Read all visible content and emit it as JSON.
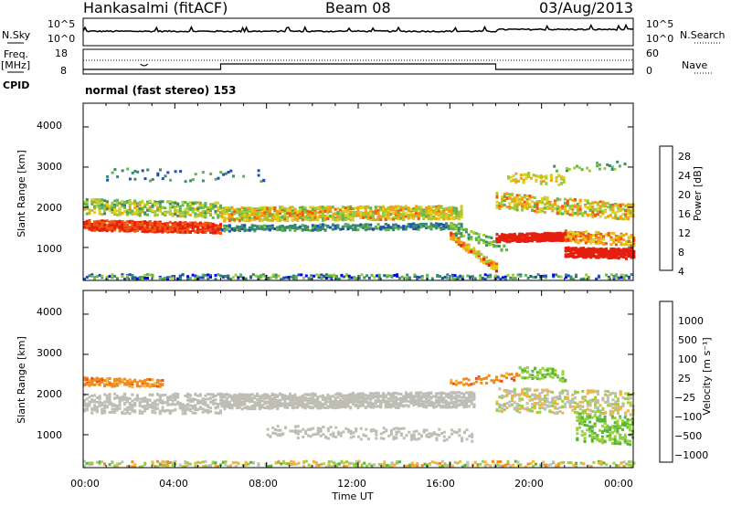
{
  "header": {
    "station": "Hankasalmi (fitACF)",
    "beam": "Beam 08",
    "date": "03/Aug/2013"
  },
  "noise_panel": {
    "left_label": "N.Sky",
    "right_label": "N.Search",
    "left_ticks": [
      "10^5",
      "10^0"
    ],
    "right_ticks": [
      "10^5",
      "10^0"
    ]
  },
  "freq_panel": {
    "left_label": "Freq.",
    "left_unit": "[MHz]",
    "right_label": "Nave",
    "left_ticks": [
      "18",
      "8"
    ],
    "right_ticks": [
      "60",
      "0"
    ]
  },
  "cpid": {
    "label": "CPID",
    "mode_text": "normal (fast stereo) 153"
  },
  "chart_data": [
    {
      "type": "heatmap",
      "title": "",
      "ylabel": "Slant Range [km]",
      "xlabel": "",
      "yticks": [
        "4000",
        "3000",
        "2000",
        "1000"
      ],
      "ylim": [
        180,
        4590
      ],
      "xlim_hours": [
        0,
        24
      ],
      "colorbar": {
        "label": "Power [dB]",
        "ticks": [
          "28",
          "24",
          "20",
          "16",
          "12",
          "8",
          "4"
        ],
        "range": [
          0,
          32
        ],
        "colors": [
          "#0000ff",
          "#1f50b4",
          "#3c8a6e",
          "#5fb450",
          "#9ccc37",
          "#dcd21e",
          "#f5a014",
          "#f05a0f",
          "#e61e0f"
        ]
      },
      "features": [
        {
          "kind": "band",
          "from_h": 0,
          "to_h": 6,
          "range_km": [
            1500,
            1700
          ],
          "level": "high"
        },
        {
          "kind": "band",
          "from_h": 0,
          "to_h": 17,
          "range_km": [
            1750,
            2200
          ],
          "level": "medium"
        },
        {
          "kind": "band",
          "from_h": 18,
          "to_h": 24,
          "range_km": [
            1100,
            1400
          ],
          "level": "high"
        },
        {
          "kind": "band",
          "from_h": 21,
          "to_h": 24,
          "range_km": [
            800,
            1100
          ],
          "level": "very high"
        }
      ]
    },
    {
      "type": "heatmap",
      "title": "",
      "ylabel": "Slant Range [km]",
      "xlabel": "Time UT",
      "yticks": [
        "4000",
        "3000",
        "2000",
        "1000"
      ],
      "ylim": [
        180,
        4590
      ],
      "xlim_hours": [
        0,
        24
      ],
      "xticks": [
        "00:00",
        "04:00",
        "08:00",
        "12:00",
        "16:00",
        "20:00",
        "00:00"
      ],
      "colorbar": {
        "label": "Velocity [m s⁻¹]",
        "ticks": [
          "1000",
          "500",
          "100",
          "25",
          "−25",
          "−100",
          "−500",
          "−1000"
        ],
        "colors": [
          "#1e46b4",
          "#2d8c64",
          "#5ab43c",
          "#96d23c",
          "#bebeb4",
          "#f5b43c",
          "#f08c1e",
          "#f05014",
          "#e61e0f"
        ]
      },
      "features": [
        {
          "kind": "band",
          "from_h": 0,
          "to_h": 17,
          "range_km": [
            1750,
            2200
          ],
          "velocity": "near zero (ground scatter)"
        },
        {
          "kind": "patch",
          "from_h": 0,
          "to_h": 4,
          "range_km": [
            2200,
            2600
          ],
          "velocity": "negative"
        },
        {
          "kind": "patch",
          "from_h": 19,
          "to_h": 24,
          "range_km": [
            1000,
            2800
          ],
          "velocity": "positive"
        }
      ]
    }
  ]
}
